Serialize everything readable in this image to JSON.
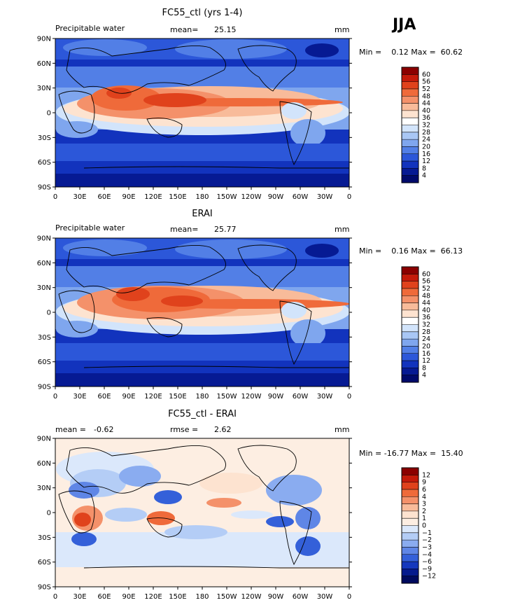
{
  "header": {
    "season": "JJA"
  },
  "axes": {
    "lat_ticks": [
      "90N",
      "60N",
      "30N",
      "0",
      "30S",
      "60S",
      "90S"
    ],
    "lon_ticks": [
      "0",
      "30E",
      "60E",
      "90E",
      "120E",
      "150E",
      "180",
      "150W",
      "120W",
      "90W",
      "60W",
      "30W",
      "0"
    ]
  },
  "panels": [
    {
      "title": "FC55_ctl (yrs 1-4)",
      "left_label": "Precipitable water",
      "stat_label": "mean=",
      "stat_value": "25.15",
      "units": "mm",
      "minmax": "Min =    0.12 Max =  60.62",
      "palette": "sequential",
      "colorbar_labels": [
        "60",
        "56",
        "52",
        "48",
        "44",
        "40",
        "36",
        "32",
        "28",
        "24",
        "20",
        "16",
        "12",
        "8",
        "4"
      ]
    },
    {
      "title": "ERAI",
      "left_label": "Precipitable water",
      "stat_label": "mean=",
      "stat_value": "25.77",
      "units": "mm",
      "minmax": "Min =    0.16 Max =  66.13",
      "palette": "sequential",
      "colorbar_labels": [
        "60",
        "56",
        "52",
        "48",
        "44",
        "40",
        "36",
        "32",
        "28",
        "24",
        "20",
        "16",
        "12",
        "8",
        "4"
      ]
    },
    {
      "title": "FC55_ctl - ERAI",
      "left_label": "mean =",
      "left_value": "-0.62",
      "stat_label": "rmse =",
      "stat_value": "2.62",
      "units": "mm",
      "minmax": "Min = -16.77 Max =  15.40",
      "palette": "diverging",
      "colorbar_labels": [
        "12",
        "9",
        "6",
        "4",
        "3",
        "2",
        "1",
        "0",
        "−1",
        "−2",
        "−3",
        "−4",
        "−6",
        "−9",
        "−12"
      ]
    }
  ],
  "colors": {
    "sequential": [
      "#8b0000",
      "#c41a0a",
      "#e0421c",
      "#ef6a3a",
      "#f4916a",
      "#f8bb9a",
      "#fde3d0",
      "#ffffff",
      "#d2e4fb",
      "#a9c7f5",
      "#7fa6ee",
      "#527fe6",
      "#2c57d9",
      "#1233bd",
      "#061a93",
      "#000a6b"
    ],
    "diverging": [
      "#8b0000",
      "#c41a0a",
      "#e0421c",
      "#ef6a3a",
      "#f4916a",
      "#f8bb9a",
      "#fde3d0",
      "#fdeee2",
      "#dbe8fb",
      "#b4cdf6",
      "#8aacf0",
      "#5f86e6",
      "#3460d9",
      "#1538bd",
      "#051a8d",
      "#000a5e"
    ]
  }
}
